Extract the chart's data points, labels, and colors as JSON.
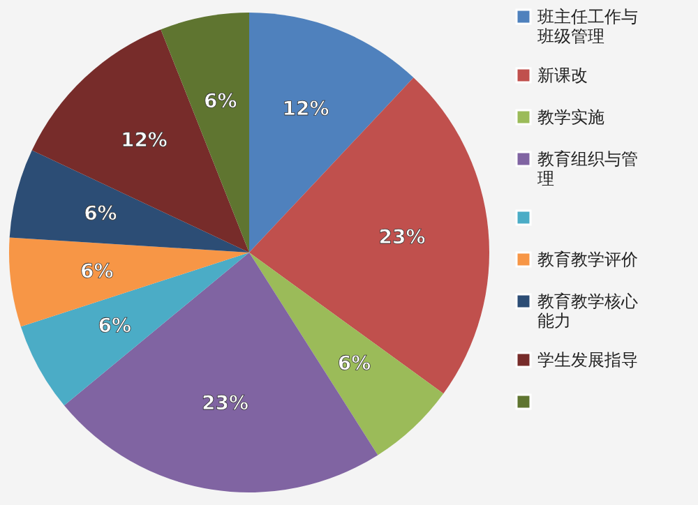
{
  "chart_data": {
    "type": "pie",
    "categories": [
      "班主任工作与班级管理",
      "新课改",
      "教学实施",
      "教育组织与管理",
      null,
      "教育教学评价",
      "教育教学核心能力",
      "学生发展指导",
      null
    ],
    "values": [
      12,
      23,
      6,
      23,
      6,
      6,
      6,
      12,
      6
    ],
    "value_labels": [
      "12%",
      "23%",
      "6%",
      "23%",
      "6%",
      "6%",
      "6%",
      "12%",
      "6%"
    ],
    "colors": [
      "#4f81bd",
      "#c0504d",
      "#9bbb59",
      "#8064a2",
      "#4bacc6",
      "#f79646",
      "#2c4d75",
      "#772c2a",
      "#5f7530"
    ],
    "legend": "right"
  }
}
